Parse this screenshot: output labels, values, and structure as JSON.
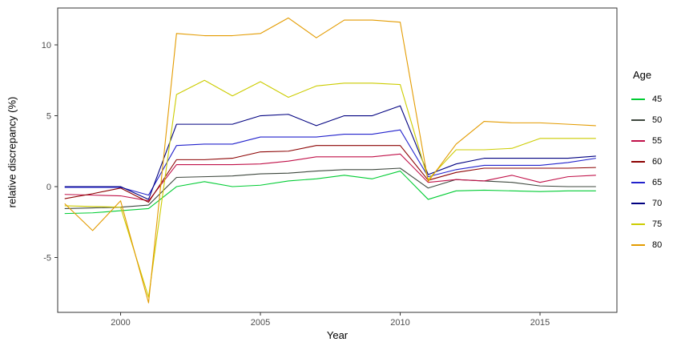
{
  "chart_data": {
    "type": "line",
    "title": "",
    "xlabel": "Year",
    "ylabel": "relative discrepancy (%)",
    "legend_title": "Age",
    "legend_position": "right",
    "grid": false,
    "panel_border": true,
    "background": "#ffffff",
    "axis_color": "#333333",
    "tick_label_color": "#4d4d4d",
    "x_ticks": [
      2000,
      2005,
      2010,
      2015
    ],
    "y_ticks": [
      -5,
      0,
      5,
      10
    ],
    "xlim": [
      1997.75,
      2017.75
    ],
    "ylim": [
      -8.87,
      12.6
    ],
    "x": [
      1998,
      1999,
      2000,
      2001,
      2002,
      2003,
      2004,
      2005,
      2006,
      2007,
      2008,
      2009,
      2010,
      2011,
      2012,
      2013,
      2014,
      2015,
      2016,
      2017
    ],
    "series": [
      {
        "name": "45",
        "color": "#00cc33",
        "values": [
          -1.9,
          -1.85,
          -1.7,
          -1.55,
          0.0,
          0.35,
          0.0,
          0.1,
          0.4,
          0.55,
          0.8,
          0.55,
          1.1,
          -0.9,
          -0.3,
          -0.25,
          -0.3,
          -0.35,
          -0.3,
          -0.3
        ]
      },
      {
        "name": "50",
        "color": "#3d473d",
        "values": [
          -1.55,
          -1.5,
          -1.45,
          -1.3,
          0.65,
          0.7,
          0.75,
          0.9,
          0.95,
          1.1,
          1.2,
          1.2,
          1.3,
          -0.1,
          0.5,
          0.4,
          0.3,
          0.05,
          0.0,
          0.0
        ]
      },
      {
        "name": "55",
        "color": "#c01048",
        "values": [
          -0.55,
          -0.6,
          -0.65,
          -1.0,
          1.55,
          1.55,
          1.55,
          1.6,
          1.8,
          2.1,
          2.1,
          2.1,
          2.3,
          0.3,
          0.5,
          0.4,
          0.8,
          0.3,
          0.7,
          0.8
        ]
      },
      {
        "name": "60",
        "color": "#8b0000",
        "values": [
          -0.85,
          -0.5,
          -0.1,
          -1.1,
          1.9,
          1.9,
          2.0,
          2.45,
          2.5,
          2.9,
          2.9,
          2.9,
          2.9,
          0.45,
          1.0,
          1.3,
          1.3,
          1.3,
          1.3,
          1.35
        ]
      },
      {
        "name": "65",
        "color": "#2222cc",
        "values": [
          -0.05,
          -0.05,
          -0.05,
          -0.6,
          2.9,
          3.0,
          3.0,
          3.5,
          3.5,
          3.5,
          3.7,
          3.7,
          4.0,
          0.7,
          1.2,
          1.5,
          1.5,
          1.5,
          1.7,
          2.0
        ]
      },
      {
        "name": "70",
        "color": "#000080",
        "values": [
          0.0,
          0.0,
          0.0,
          -0.9,
          4.4,
          4.4,
          4.4,
          5.0,
          5.1,
          4.3,
          5.0,
          5.0,
          5.7,
          0.85,
          1.6,
          2.0,
          2.0,
          2.0,
          2.0,
          2.15
        ]
      },
      {
        "name": "75",
        "color": "#cccc00",
        "values": [
          -1.35,
          -1.4,
          -1.45,
          -7.8,
          6.5,
          7.5,
          6.4,
          7.4,
          6.3,
          7.1,
          7.3,
          7.3,
          7.2,
          0.5,
          2.6,
          2.6,
          2.7,
          3.4,
          3.4,
          3.4
        ]
      },
      {
        "name": "80",
        "color": "#e39b00",
        "values": [
          -1.2,
          -3.1,
          -1.0,
          -8.2,
          10.8,
          10.65,
          10.65,
          10.8,
          11.9,
          10.5,
          11.75,
          11.75,
          11.6,
          0.35,
          3.0,
          4.6,
          4.5,
          4.5,
          4.4,
          4.3
        ]
      }
    ]
  }
}
